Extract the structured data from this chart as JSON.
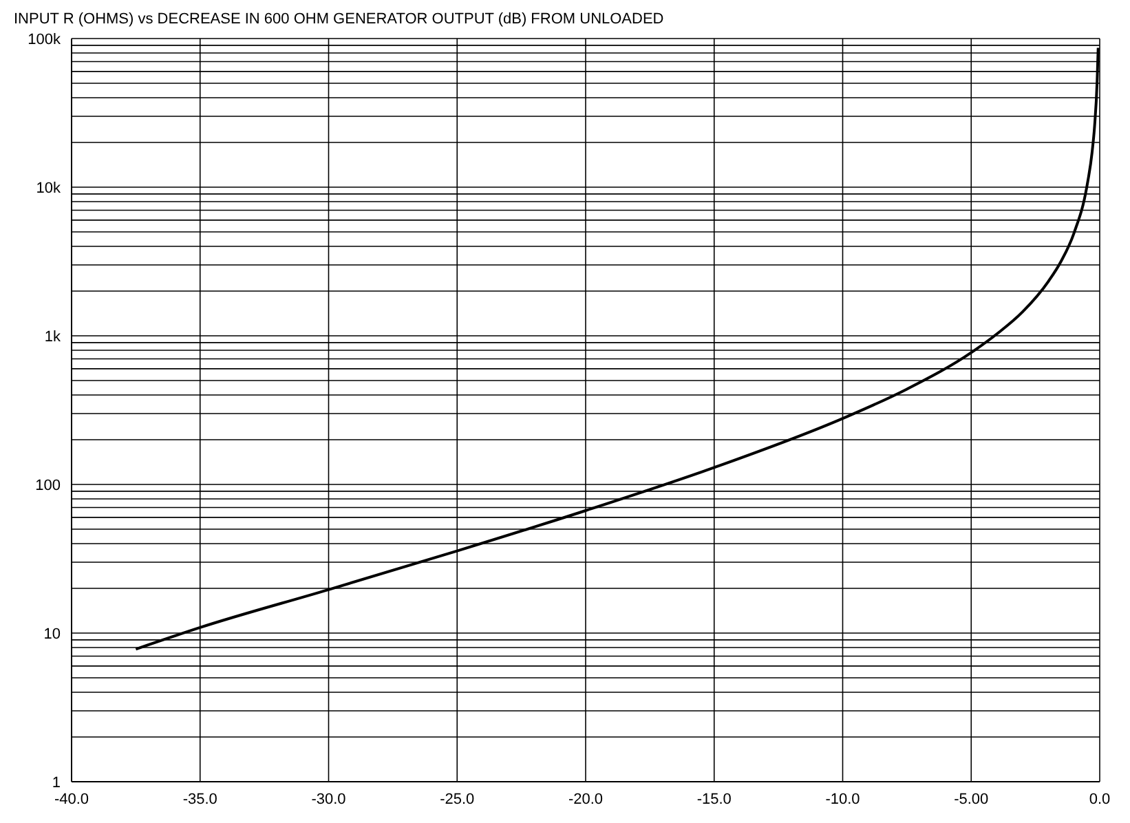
{
  "chart_data": {
    "type": "line",
    "title": "INPUT R (OHMS) vs DECREASE IN 600 OHM GENERATOR OUTPUT (dB) FROM UNLOADED",
    "x": [
      -37.5,
      -35,
      -30,
      -25,
      -20,
      -15,
      -10,
      -7.5,
      -5,
      -4,
      -3,
      -2,
      -1.5,
      -1,
      -0.5,
      -0.3,
      -0.2,
      -0.1,
      -0.06
    ],
    "series": [
      {
        "color": "#000000",
        "values": [
          7.8,
          10.9,
          19.6,
          35.7,
          66.7,
          130,
          278,
          438,
          771,
          1030,
          1450,
          2320,
          3180,
          4920,
          10100,
          17000,
          25700,
          51800,
          86600
        ]
      }
    ],
    "xlim": [
      -40,
      0
    ],
    "xticks": [
      {
        "value": -40,
        "label": "-40.0"
      },
      {
        "value": -35,
        "label": "-35.0"
      },
      {
        "value": -30,
        "label": "-30.0"
      },
      {
        "value": -25,
        "label": "-25.0"
      },
      {
        "value": -20,
        "label": "-20.0"
      },
      {
        "value": -15,
        "label": "-15.0"
      },
      {
        "value": -10,
        "label": "-10.0"
      },
      {
        "value": -5,
        "label": "-5.00"
      },
      {
        "value": 0,
        "label": "0.0"
      }
    ],
    "ylim": [
      1,
      100000
    ],
    "yticks": [
      1,
      {
        "value": 2,
        "label": null
      },
      {
        "value": 3,
        "label": null
      },
      {
        "value": 4,
        "label": null
      },
      {
        "value": 5,
        "label": null
      },
      {
        "value": 6,
        "label": null
      },
      {
        "value": 7,
        "label": null
      },
      {
        "value": 8,
        "label": null
      },
      {
        "value": 9,
        "label": null
      },
      10,
      {
        "value": 20,
        "label": null
      },
      {
        "value": 30,
        "label": null
      },
      {
        "value": 40,
        "label": null
      },
      {
        "value": 50,
        "label": null
      },
      {
        "value": 60,
        "label": null
      },
      {
        "value": 70,
        "label": null
      },
      {
        "value": 80,
        "label": null
      },
      {
        "value": 90,
        "label": null
      },
      100,
      {
        "value": 200,
        "label": null
      },
      {
        "value": 300,
        "label": null
      },
      {
        "value": 400,
        "label": null
      },
      {
        "value": 500,
        "label": null
      },
      {
        "value": 600,
        "label": null
      },
      {
        "value": 700,
        "label": null
      },
      {
        "value": 800,
        "label": null
      },
      {
        "value": 900,
        "label": null
      },
      {
        "value": 1000,
        "label": "1k"
      },
      {
        "value": 2000,
        "label": null
      },
      {
        "value": 3000,
        "label": null
      },
      {
        "value": 4000,
        "label": null
      },
      {
        "value": 5000,
        "label": null
      },
      {
        "value": 6000,
        "label": null
      },
      {
        "value": 7000,
        "label": null
      },
      {
        "value": 8000,
        "label": null
      },
      {
        "value": 9000,
        "label": null
      },
      {
        "value": 10000,
        "label": "10k"
      },
      {
        "value": 20000,
        "label": null
      },
      {
        "value": 30000,
        "label": null
      },
      {
        "value": 40000,
        "label": null
      },
      {
        "value": 50000,
        "label": null
      },
      {
        "value": 60000,
        "label": null
      },
      {
        "value": 70000,
        "label": null
      },
      {
        "value": 80000,
        "label": null
      },
      {
        "value": 90000,
        "label": null
      },
      {
        "value": 100000,
        "label": "100k"
      }
    ],
    "log": true,
    "grid": true,
    "marker": "none",
    "line_style": "solid"
  }
}
